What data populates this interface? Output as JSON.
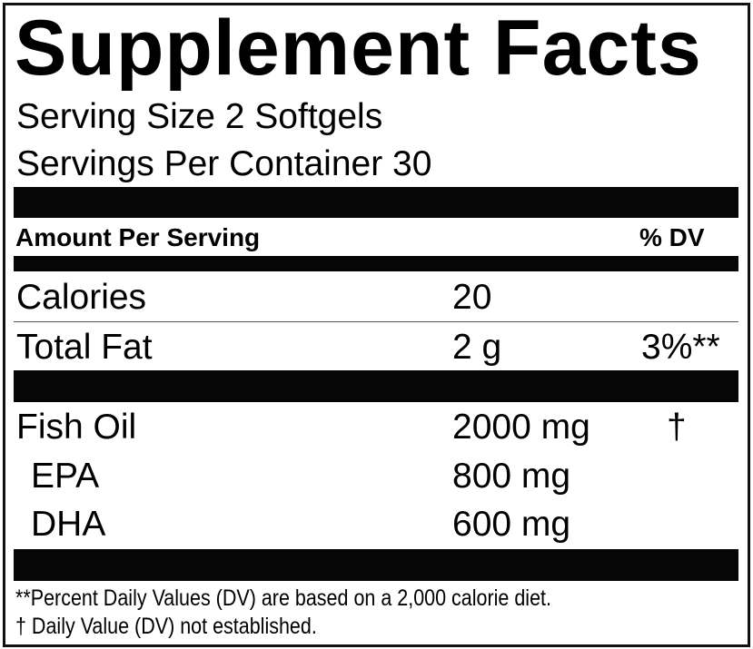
{
  "title": "Supplement Facts",
  "serving_size": "Serving Size 2 Softgels",
  "servings_per_container": "Servings Per Container 30",
  "header": {
    "amount": "Amount Per Serving",
    "dv": "% DV"
  },
  "rows": [
    {
      "name": "Calories",
      "amount": "20",
      "dv": ""
    },
    {
      "name": "Total Fat",
      "amount": "2 g",
      "dv": "3%**"
    },
    {
      "name": "Fish Oil",
      "amount": "2000 mg",
      "dv": "†"
    },
    {
      "name": "EPA",
      "amount": "800 mg",
      "dv": ""
    },
    {
      "name": "DHA",
      "amount": "600 mg",
      "dv": ""
    }
  ],
  "footnotes": [
    "**Percent Daily Values (DV) are based on a 2,000 calorie diet.",
    "† Daily Value (DV) not established."
  ]
}
